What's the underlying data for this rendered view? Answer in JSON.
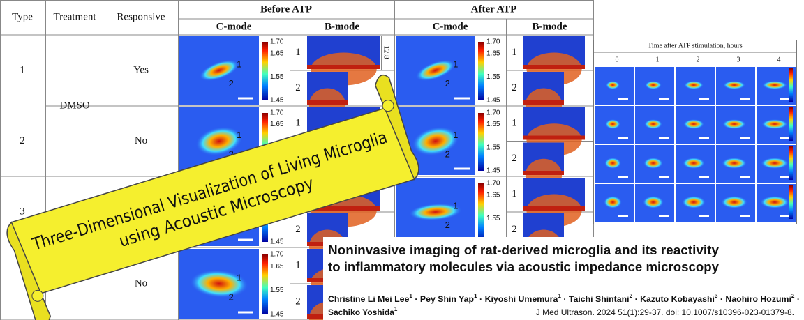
{
  "table": {
    "headers": {
      "type": "Type",
      "treatment": "Treatment",
      "responsive": "Responsive",
      "before": "Before ATP",
      "after": "After ATP",
      "c_mode": "C-mode",
      "b_mode": "B-mode"
    },
    "rows": [
      {
        "type": "1",
        "responsive": "Yes"
      },
      {
        "type": "2",
        "responsive": "No"
      },
      {
        "type": "3"
      },
      {
        "responsive": "No"
      }
    ],
    "treatment": "DMSO",
    "colorbar": [
      "1.70",
      "1.65",
      "1.55",
      "1.45"
    ],
    "markers": [
      "1",
      "2"
    ],
    "depth": "12.8"
  },
  "inset": {
    "title": "Time after ATP stimulation, hours",
    "columns": [
      "0",
      "1",
      "2",
      "3",
      "4"
    ]
  },
  "banner": {
    "lines": [
      "Three-Dimensional Visualization of Living Microglia",
      "using Acoustic Microscopy"
    ]
  },
  "paper": {
    "title": [
      "Noninvasive imaging of rat-derived microglia and its reactivity",
      "to inflammatory molecules via acoustic impedance microscopy"
    ],
    "authors": [
      {
        "name": "Christine Li Mei Lee",
        "aff": "1"
      },
      {
        "name": "Pey Shin Yap",
        "aff": "1"
      },
      {
        "name": "Kiyoshi Umemura",
        "aff": "1"
      },
      {
        "name": "Taichi Shintani",
        "aff": "2"
      },
      {
        "name": "Kazuto Kobayashi",
        "aff": "3"
      },
      {
        "name": "Naohiro Hozumi",
        "aff": "2"
      },
      {
        "name": "Sachiko Yoshida",
        "aff": "1"
      }
    ],
    "separator": "·",
    "citation": "J Med Ultrason. 2024 51(1):29-37. doi: 10.1007/s10396-023-01379-8."
  }
}
